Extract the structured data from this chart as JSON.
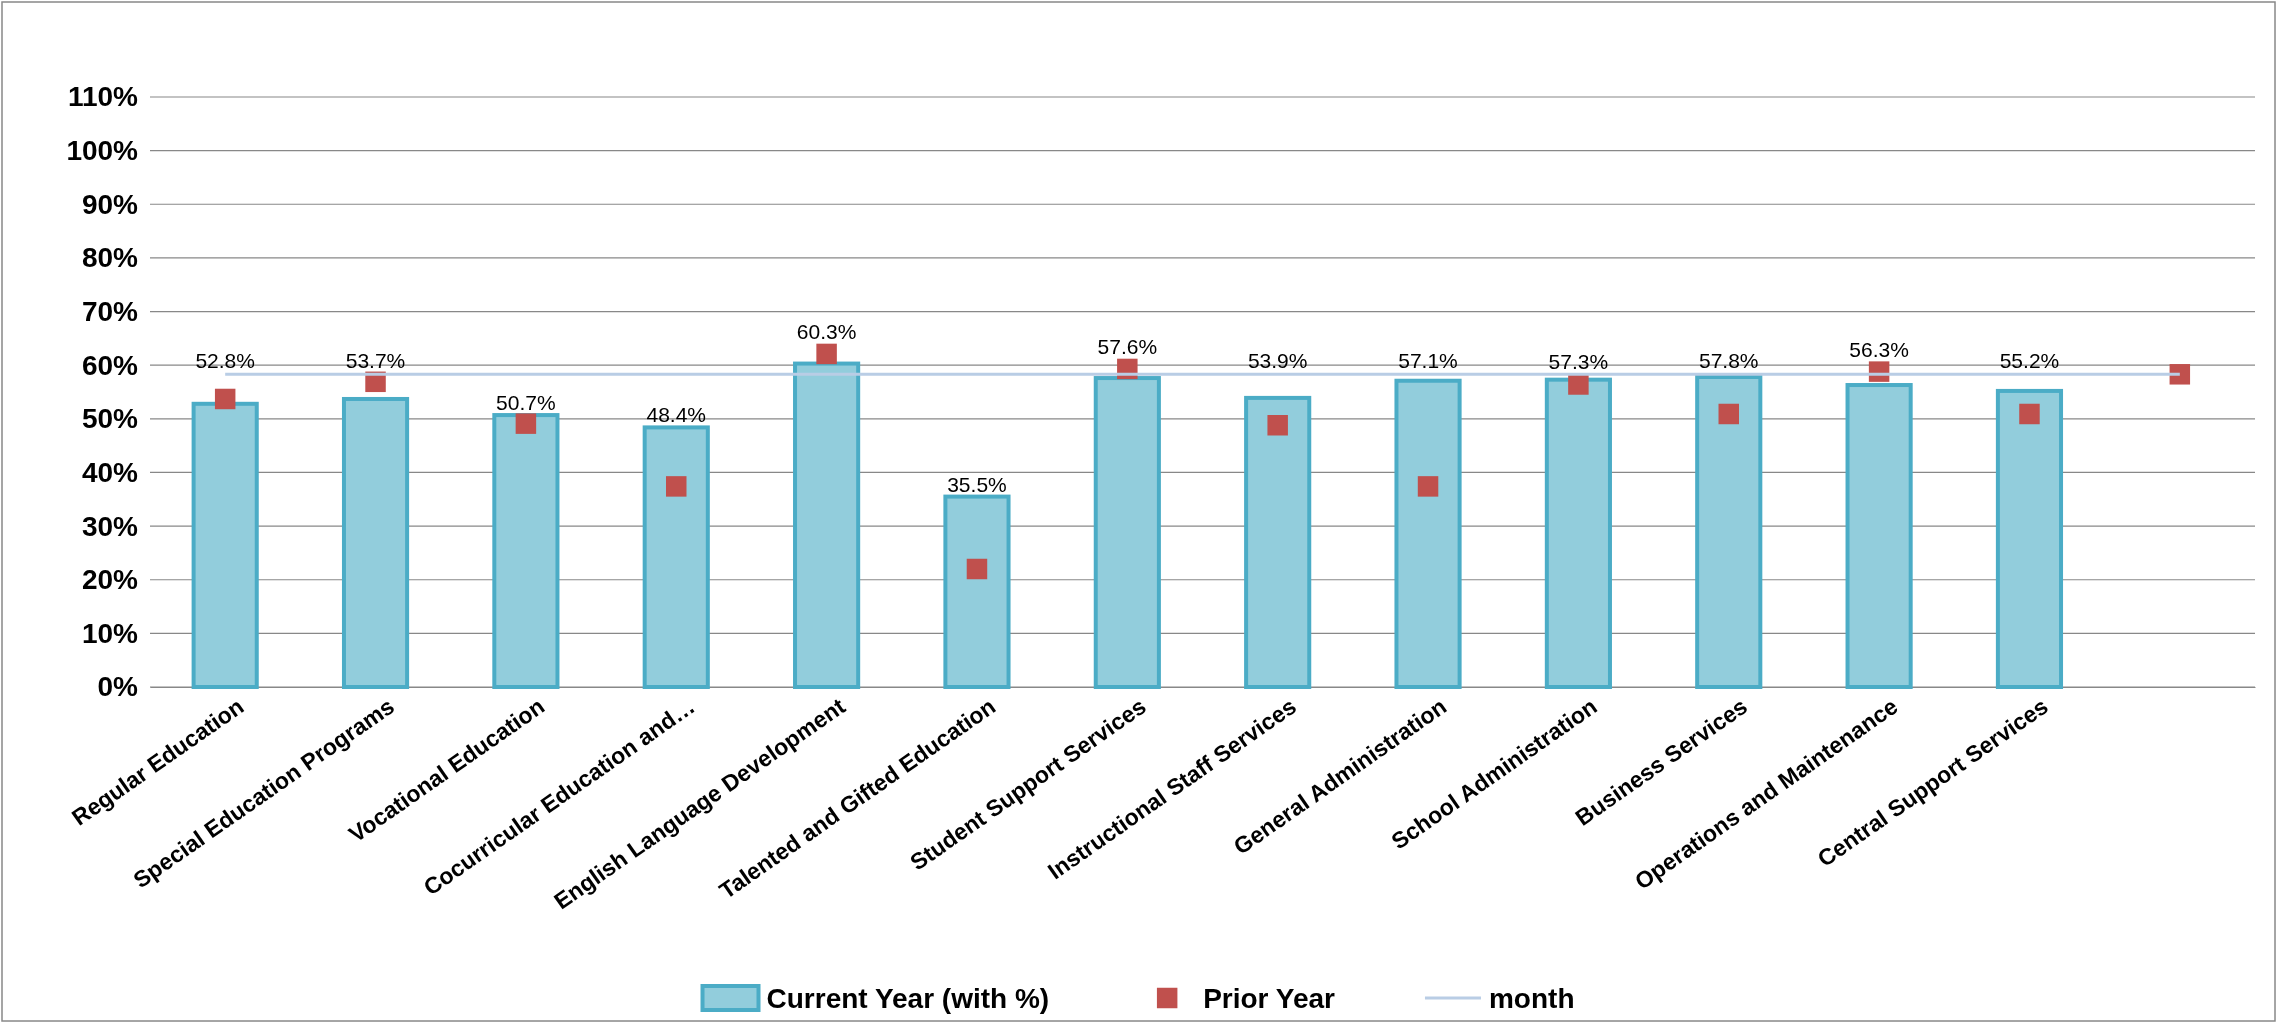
{
  "chart_data": {
    "type": "bar",
    "categories": [
      "Regular Education",
      "Special Education Programs",
      "Vocational Education",
      "Cocurricular Education and…",
      "English Language Development",
      "Talented and Gifted Education",
      "Student Support Services",
      "Instructional Staff Services",
      "General Administration",
      "School Administration",
      "Business Services",
      "Operations and Maintenance",
      "Central Support Services",
      null
    ],
    "series": [
      {
        "name": "Current Year (with %)",
        "color": "#92cddc",
        "values": [
          52.8,
          53.7,
          50.7,
          48.4,
          60.3,
          35.5,
          57.6,
          53.9,
          57.1,
          57.3,
          57.8,
          56.3,
          55.2,
          null
        ],
        "value_labels": [
          "52.8%",
          "53.7%",
          "50.7%",
          "48.4%",
          "60.3%",
          "35.5%",
          "57.6%",
          "53.9%",
          "57.1%",
          "57.3%",
          "57.8%",
          "56.3%",
          "55.2%",
          null
        ]
      },
      {
        "name": "Prior Year",
        "type": "scatter",
        "color": "#c0504d",
        "marker": "square",
        "values": [
          53.7,
          56.9,
          49.1,
          37.4,
          62.1,
          22.0,
          59.3,
          48.8,
          37.4,
          56.4,
          50.9,
          58.8,
          50.9,
          58.3
        ]
      },
      {
        "name": "month",
        "type": "line",
        "color": "#b9cde5",
        "marker": "none",
        "values": [
          58.3,
          58.3,
          58.3,
          58.3,
          58.3,
          58.3,
          58.3,
          58.3,
          58.3,
          58.3,
          58.3,
          58.3,
          58.3,
          58.3
        ]
      }
    ],
    "ylim": [
      0,
      110
    ],
    "yticks": [
      {
        "value": 0,
        "label": "0%"
      },
      {
        "value": 10,
        "label": "10%"
      },
      {
        "value": 20,
        "label": "20%"
      },
      {
        "value": 30,
        "label": "30%"
      },
      {
        "value": 40,
        "label": "40%"
      },
      {
        "value": 50,
        "label": "50%"
      },
      {
        "value": 60,
        "label": "60%"
      },
      {
        "value": 70,
        "label": "70%"
      },
      {
        "value": 80,
        "label": "80%"
      },
      {
        "value": 90,
        "label": "90%"
      },
      {
        "value": 100,
        "label": "100%"
      },
      {
        "value": 110,
        "label": "110%"
      }
    ],
    "grid": "y",
    "legend": "bottom"
  }
}
